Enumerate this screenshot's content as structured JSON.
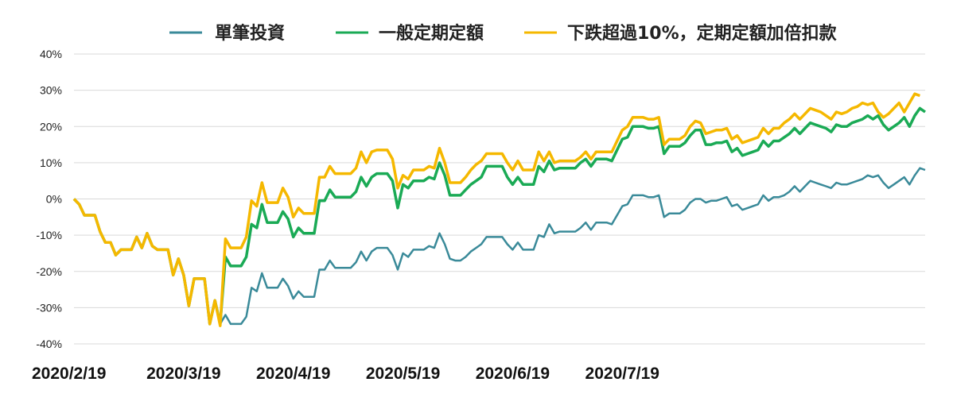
{
  "chart_data": {
    "type": "line",
    "title": "",
    "xlabel": "",
    "ylabel": "",
    "ylim": [
      -40,
      40
    ],
    "yticks": [
      40,
      30,
      20,
      10,
      0,
      -10,
      -20,
      -30,
      -40
    ],
    "ytick_labels": [
      "40%",
      "30%",
      "20%",
      "10%",
      "0%",
      "-10%",
      "-20%",
      "-30%",
      "-40%"
    ],
    "x_tick_labels": [
      "2020/2/19",
      "2020/3/19",
      "2020/4/19",
      "2020/5/19",
      "2020/6/19",
      "2020/7/19"
    ],
    "x_tick_index": [
      0,
      21,
      42,
      63,
      84,
      105
    ],
    "grid": true,
    "legend_position": "top",
    "colors": {
      "lump": "#3a8a99",
      "regular": "#1aaa55",
      "double": "#f5b800"
    },
    "series": [
      {
        "name": "單筆投資",
        "color": "#3a8a99",
        "values": [
          0,
          -1.5,
          -4.5,
          -4.5,
          -4.5,
          -9,
          -12,
          -12,
          -15.5,
          -14,
          -14,
          -14,
          -10.5,
          -13.5,
          -9.5,
          -13,
          -14,
          -14,
          -14,
          -21,
          -16.5,
          -21,
          -29.5,
          -22,
          -22,
          -22,
          -34.5,
          -28,
          -34.5,
          -32,
          -34.5,
          -34.5,
          -34.5,
          -32.5,
          -24.5,
          -25.5,
          -20.5,
          -24.5,
          -24.5,
          -24.5,
          -22,
          -24,
          -27.5,
          -25.5,
          -27,
          -27,
          -27,
          -19.5,
          -19.5,
          -17,
          -19,
          -19,
          -19,
          -19,
          -17.5,
          -14.5,
          -17,
          -14.5,
          -13.5,
          -13.5,
          -13.5,
          -15.5,
          -19.5,
          -15,
          -16,
          -14,
          -14,
          -14,
          -13,
          -13.5,
          -9.5,
          -12.5,
          -16.5,
          -17,
          -17,
          -16,
          -14.5,
          -13.5,
          -12.5,
          -10.5,
          -10.5,
          -10.5,
          -10.5,
          -12.5,
          -14,
          -12,
          -14,
          -14,
          -14,
          -10,
          -10.5,
          -7,
          -9.5,
          -9,
          -9,
          -9,
          -9,
          -8,
          -6.5,
          -8.5,
          -6.5,
          -6.5,
          -6.5,
          -7,
          -4.5,
          -2,
          -1.5,
          1,
          1,
          1,
          0.5,
          0.5,
          1,
          -5,
          -4,
          -4,
          -4,
          -3,
          -1,
          0,
          0,
          -1,
          -0.5,
          -0.5,
          0,
          0.5,
          -2,
          -1.5,
          -3,
          -2.5,
          -2,
          -1.5,
          1,
          -0.5,
          0.5,
          0.5,
          1,
          2,
          3.5,
          2,
          3.5,
          5,
          4.5,
          4,
          3.5,
          3,
          4.5,
          4,
          4,
          4.5,
          5,
          5.5,
          6.5,
          6,
          6.5,
          4.5,
          3,
          4,
          5,
          6,
          4,
          6.5,
          8.5,
          8
        ]
      },
      {
        "name": "一般定期定額",
        "color": "#1aaa55",
        "values": [
          0,
          -1.5,
          -4.5,
          -4.5,
          -4.5,
          -9,
          -12,
          -12,
          -15.5,
          -14,
          -14,
          -14,
          -10.5,
          -13.5,
          -9.5,
          -13,
          -14,
          -14,
          -14,
          -21,
          -16.5,
          -21,
          -29.5,
          -22,
          -22,
          -22,
          -34.5,
          -28,
          -34.5,
          -16,
          -18.5,
          -18.5,
          -18.5,
          -16,
          -7,
          -8,
          -1.5,
          -6.5,
          -6.5,
          -6.5,
          -3.5,
          -5.5,
          -10.5,
          -8,
          -9.5,
          -9.5,
          -9.5,
          -0.5,
          -0.5,
          2.5,
          0.5,
          0.5,
          0.5,
          0.5,
          2,
          6,
          3.5,
          6,
          7,
          7,
          7,
          5,
          -2.5,
          4,
          3,
          5,
          5,
          5,
          6,
          5.5,
          10,
          6.5,
          1,
          1,
          1,
          2.5,
          4,
          5,
          6,
          9,
          9,
          9,
          9,
          6,
          4,
          6,
          4,
          4,
          4,
          9,
          7.5,
          10.5,
          8,
          8.5,
          8.5,
          8.5,
          8.5,
          10,
          11,
          9,
          11,
          11,
          11,
          10.5,
          13.5,
          16.5,
          17,
          20,
          20,
          20,
          19.5,
          19.5,
          20,
          12.5,
          14.5,
          14.5,
          14.5,
          15.5,
          17.5,
          19,
          19,
          15,
          15,
          15.5,
          15.5,
          16,
          13,
          14,
          12,
          12.5,
          13,
          13.5,
          16,
          14.5,
          16,
          16,
          17,
          18,
          19.5,
          18,
          19.5,
          21,
          20.5,
          20,
          19.5,
          18.5,
          20.5,
          20,
          20,
          21,
          21.5,
          22,
          23,
          22,
          23,
          20.5,
          19,
          20,
          21,
          22.5,
          20,
          23,
          25,
          24
        ]
      },
      {
        "name": "下跌超過10%，定期定額加倍扣款",
        "color": "#f5b800",
        "values": [
          0,
          -1.5,
          -4.5,
          -4.5,
          -4.5,
          -9,
          -12,
          -12,
          -15.5,
          -14,
          -14,
          -14,
          -10.5,
          -13.5,
          -9.5,
          -13,
          -14,
          -14,
          -14,
          -21,
          -16.5,
          -21,
          -29.5,
          -22,
          -22,
          -22,
          -34.5,
          -28,
          -35,
          -11,
          -13.5,
          -13.5,
          -13.5,
          -10.5,
          -0.5,
          -2,
          4.5,
          -1,
          -1,
          -1,
          3,
          0.5,
          -5,
          -2.5,
          -4,
          -4,
          -4,
          6,
          6,
          9,
          7,
          7,
          7,
          7,
          8.5,
          13,
          10,
          13,
          13.5,
          13.5,
          13.5,
          11,
          3,
          6.5,
          5.5,
          8,
          8,
          8,
          9,
          8.5,
          14,
          10,
          4.5,
          4.5,
          4.5,
          6,
          8,
          9.5,
          10.5,
          12.5,
          12.5,
          12.5,
          12.5,
          10,
          8,
          10.5,
          8,
          8,
          8,
          13,
          10.5,
          13,
          10,
          10.5,
          10.5,
          10.5,
          10.5,
          11.5,
          13,
          11,
          13,
          13,
          13,
          13,
          16,
          19,
          20,
          22.5,
          22.5,
          22.5,
          22,
          22,
          22.5,
          15,
          16.5,
          16.5,
          16.5,
          17.5,
          20,
          21.5,
          21,
          18,
          18.5,
          19,
          19,
          19.5,
          16.5,
          17.5,
          15.5,
          16,
          16.5,
          17,
          19.5,
          18,
          19.5,
          19.5,
          21,
          22,
          23.5,
          22,
          23.5,
          25,
          24.5,
          24,
          23,
          22,
          24,
          23.5,
          24,
          25,
          25.5,
          26.5,
          26,
          26.5,
          24,
          22.5,
          23.5,
          25,
          26.5,
          24,
          26.5,
          29,
          28.5
        ]
      }
    ]
  }
}
